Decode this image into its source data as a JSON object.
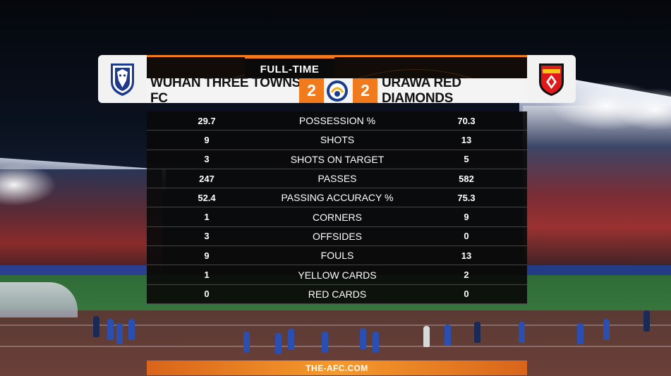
{
  "match": {
    "status": "FULL-TIME",
    "home": {
      "name": "WUHAN THREE TOWNS FC",
      "score": "2"
    },
    "away": {
      "name": "URAWA RED DIAMONDS",
      "score": "2"
    }
  },
  "stats": [
    {
      "label": "POSSESSION %",
      "home": "29.7",
      "away": "70.3"
    },
    {
      "label": "SHOTS",
      "home": "9",
      "away": "13"
    },
    {
      "label": "SHOTS ON TARGET",
      "home": "3",
      "away": "5"
    },
    {
      "label": "PASSES",
      "home": "247",
      "away": "582"
    },
    {
      "label": "PASSING ACCURACY %",
      "home": "52.4",
      "away": "75.3"
    },
    {
      "label": "CORNERS",
      "home": "1",
      "away": "9"
    },
    {
      "label": "OFFSIDES",
      "home": "3",
      "away": "0"
    },
    {
      "label": "FOULS",
      "home": "9",
      "away": "13"
    },
    {
      "label": "YELLOW CARDS",
      "home": "1",
      "away": "2"
    },
    {
      "label": "RED CARDS",
      "home": "0",
      "away": "0"
    }
  ],
  "footer": {
    "site": "THE-AFC.COM"
  },
  "icons": {
    "home_crest": "wuhan-three-towns-crest-icon",
    "away_crest": "urawa-red-diamonds-crest-icon",
    "competition": "afc-champions-league-icon"
  },
  "colors": {
    "accent": "#f07a1c",
    "panel": "#0a0a0a",
    "bar": "#f4f4f4"
  }
}
